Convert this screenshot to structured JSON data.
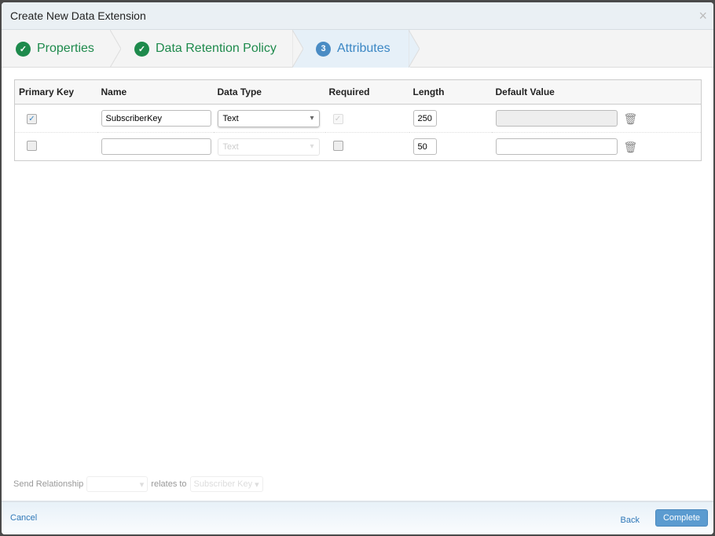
{
  "dialog": {
    "title": "Create New Data Extension",
    "close_icon": "×"
  },
  "steps": [
    {
      "label": "Properties",
      "state": "done"
    },
    {
      "label": "Data Retention Policy",
      "state": "done"
    },
    {
      "label": "Attributes",
      "state": "current",
      "number": "3"
    }
  ],
  "table": {
    "headers": [
      "Primary Key",
      "Name",
      "Data Type",
      "Required",
      "Length",
      "Default Value"
    ],
    "rows": [
      {
        "primary_key": true,
        "name": "SubscriberKey",
        "data_type": "Text",
        "required": true,
        "required_disabled": true,
        "length": "250",
        "default_value": "",
        "default_disabled": true
      },
      {
        "primary_key": false,
        "name": "",
        "data_type": "Text",
        "data_type_disabled": true,
        "required": false,
        "length": "50",
        "default_value": ""
      }
    ]
  },
  "relationship": {
    "label": "Send Relationship",
    "field_value": "",
    "relates_to": "relates to",
    "subscriber_field": "Subscriber Key"
  },
  "footer": {
    "cancel": "Cancel",
    "back": "Back",
    "complete": "Complete"
  },
  "colors": {
    "done": "#1e8a4c",
    "current": "#3b87c4",
    "primary_button": "#5b9bd0"
  }
}
